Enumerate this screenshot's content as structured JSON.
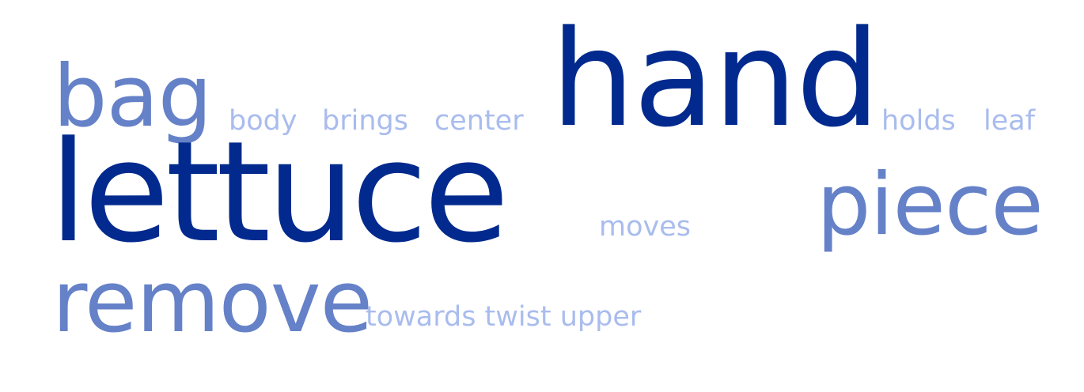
{
  "wordcloud": {
    "colors": {
      "dark": "#022a8e",
      "mid": "#6581c8",
      "light": "#a9bcee"
    },
    "words": {
      "bag": "bag",
      "body": "body",
      "brings": "brings",
      "center": "center",
      "hand": "hand",
      "holds": "holds",
      "leaf": "leaf",
      "lettuce": "lettuce",
      "moves": "moves",
      "piece": "piece",
      "remove": "remove",
      "towards_twist_upper": "towards twist upper"
    }
  }
}
